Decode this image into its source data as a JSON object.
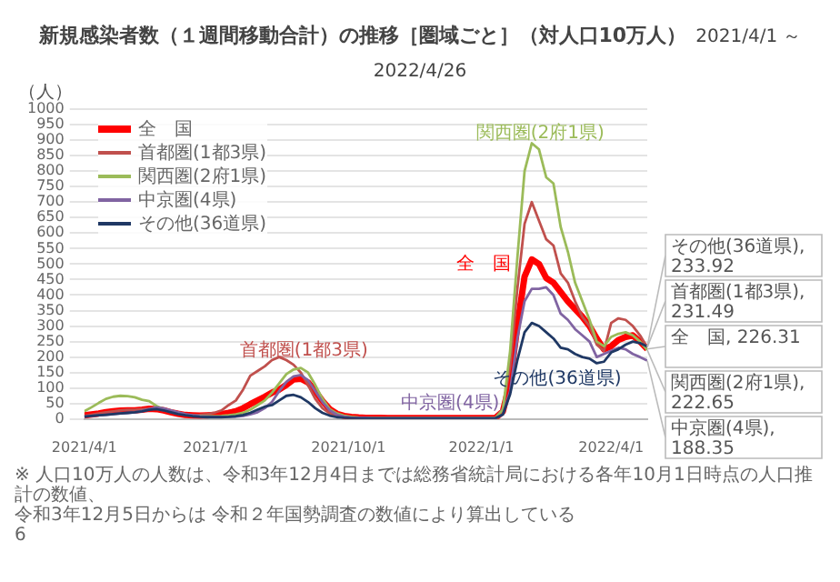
{
  "chart_data": {
    "type": "line",
    "title": "新規感染者数（１週間移動合計）の推移［圏域ごと］（対人口10万人）",
    "subtitle": "2021/4/1 ～ 2022/4/26",
    "ylabel": "（人）",
    "x": [
      "2021-04-01",
      "2021-04-06",
      "2021-04-11",
      "2021-04-16",
      "2021-04-21",
      "2021-04-26",
      "2021-05-01",
      "2021-05-06",
      "2021-05-11",
      "2021-05-16",
      "2021-05-21",
      "2021-05-26",
      "2021-05-31",
      "2021-06-05",
      "2021-06-10",
      "2021-06-15",
      "2021-06-20",
      "2021-06-25",
      "2021-06-30",
      "2021-07-05",
      "2021-07-10",
      "2021-07-15",
      "2021-07-20",
      "2021-07-25",
      "2021-07-30",
      "2021-08-04",
      "2021-08-09",
      "2021-08-14",
      "2021-08-19",
      "2021-08-24",
      "2021-08-29",
      "2021-09-03",
      "2021-09-08",
      "2021-09-13",
      "2021-09-18",
      "2021-09-23",
      "2021-09-28",
      "2021-10-03",
      "2021-10-08",
      "2021-10-13",
      "2021-10-18",
      "2021-10-23",
      "2021-10-28",
      "2021-11-02",
      "2021-11-07",
      "2021-11-12",
      "2021-11-17",
      "2021-11-22",
      "2021-11-27",
      "2021-12-02",
      "2021-12-07",
      "2021-12-12",
      "2021-12-17",
      "2021-12-22",
      "2021-12-27",
      "2022-01-01",
      "2022-01-06",
      "2022-01-11",
      "2022-01-16",
      "2022-01-21",
      "2022-01-26",
      "2022-01-31",
      "2022-02-05",
      "2022-02-10",
      "2022-02-15",
      "2022-02-20",
      "2022-02-25",
      "2022-03-02",
      "2022-03-07",
      "2022-03-12",
      "2022-03-17",
      "2022-03-22",
      "2022-03-27",
      "2022-04-01",
      "2022-04-06",
      "2022-04-11",
      "2022-04-16",
      "2022-04-21",
      "2022-04-26"
    ],
    "series": [
      {
        "name": "全　国",
        "color": "#ff0000",
        "values": [
          12,
          15,
          18,
          22,
          25,
          27,
          28,
          28,
          30,
          33,
          32,
          28,
          22,
          17,
          13,
          12,
          11,
          12,
          13,
          16,
          20,
          25,
          35,
          48,
          60,
          72,
          85,
          95,
          110,
          128,
          130,
          118,
          90,
          58,
          32,
          17,
          10,
          7,
          5,
          4,
          4,
          4,
          3,
          3,
          3,
          3,
          3,
          3,
          3,
          3,
          3,
          3,
          3,
          3,
          3,
          3,
          3,
          4,
          25,
          120,
          300,
          460,
          515,
          500,
          455,
          440,
          410,
          380,
          355,
          330,
          300,
          260,
          225,
          235,
          255,
          265,
          270,
          250,
          226.31
        ],
        "value_labels": [
          null,
          null,
          null,
          null,
          null,
          null,
          null,
          null,
          null,
          null,
          null,
          null,
          null,
          null,
          null,
          null,
          null,
          null,
          null,
          null,
          null,
          null,
          null,
          null,
          null,
          null,
          null,
          null,
          null,
          null,
          null,
          null,
          null,
          null,
          null,
          null,
          null,
          null,
          null,
          null,
          null,
          null,
          null,
          null,
          null,
          null,
          null,
          null,
          null,
          null,
          null,
          null,
          null,
          null,
          null,
          null,
          null,
          null,
          null,
          null,
          null,
          null,
          null,
          null,
          null,
          null,
          null,
          null,
          null,
          null,
          null,
          null,
          null,
          null,
          null,
          null,
          null,
          null,
          "全　国, 226.31"
        ]
      },
      {
        "name": "首都圏(1都3県)",
        "color": "#c0504d",
        "values": [
          10,
          14,
          18,
          22,
          25,
          28,
          30,
          30,
          32,
          33,
          33,
          28,
          22,
          17,
          14,
          13,
          14,
          16,
          20,
          28,
          45,
          60,
          95,
          140,
          155,
          170,
          190,
          200,
          190,
          175,
          150,
          110,
          65,
          35,
          18,
          10,
          7,
          5,
          5,
          4,
          4,
          4,
          4,
          4,
          4,
          4,
          4,
          4,
          4,
          4,
          4,
          4,
          4,
          4,
          4,
          4,
          4,
          5,
          35,
          170,
          420,
          630,
          700,
          640,
          580,
          560,
          470,
          440,
          380,
          330,
          300,
          240,
          220,
          310,
          325,
          320,
          300,
          270,
          231.49
        ],
        "value_labels": [
          null,
          null,
          null,
          null,
          null,
          null,
          null,
          null,
          null,
          null,
          null,
          null,
          null,
          null,
          null,
          null,
          null,
          null,
          null,
          null,
          null,
          null,
          null,
          null,
          null,
          null,
          null,
          null,
          null,
          null,
          null,
          null,
          null,
          null,
          null,
          null,
          null,
          null,
          null,
          null,
          null,
          null,
          null,
          null,
          null,
          null,
          null,
          null,
          null,
          null,
          null,
          null,
          null,
          null,
          null,
          null,
          null,
          null,
          null,
          null,
          null,
          null,
          null,
          null,
          null,
          null,
          null,
          null,
          null,
          null,
          null,
          null,
          null,
          null,
          null,
          null,
          null,
          null,
          "首都圏(1都3県), 231.49"
        ]
      },
      {
        "name": "関西圏(2府1県)",
        "color": "#9bbb59",
        "values": [
          25,
          38,
          52,
          65,
          72,
          75,
          74,
          70,
          62,
          58,
          42,
          32,
          25,
          18,
          14,
          11,
          10,
          9,
          9,
          10,
          12,
          15,
          20,
          30,
          45,
          60,
          85,
          115,
          145,
          160,
          165,
          150,
          110,
          65,
          32,
          18,
          11,
          7,
          5,
          4,
          3,
          3,
          3,
          3,
          3,
          3,
          3,
          3,
          3,
          3,
          3,
          3,
          3,
          3,
          3,
          3,
          3,
          4,
          30,
          220,
          520,
          800,
          890,
          870,
          780,
          760,
          620,
          540,
          440,
          380,
          320,
          250,
          235,
          265,
          275,
          280,
          270,
          250,
          222.65
        ],
        "value_labels": [
          null,
          null,
          null,
          null,
          null,
          null,
          null,
          null,
          null,
          null,
          null,
          null,
          null,
          null,
          null,
          null,
          null,
          null,
          null,
          null,
          null,
          null,
          null,
          null,
          null,
          null,
          null,
          null,
          null,
          null,
          null,
          null,
          null,
          null,
          null,
          null,
          null,
          null,
          null,
          null,
          null,
          null,
          null,
          null,
          null,
          null,
          null,
          null,
          null,
          null,
          null,
          null,
          null,
          null,
          null,
          null,
          null,
          null,
          null,
          null,
          null,
          null,
          null,
          null,
          null,
          null,
          null,
          null,
          null,
          null,
          null,
          null,
          null,
          null,
          null,
          null,
          null,
          null,
          "関西圏(2府1県), 222.65"
        ]
      },
      {
        "name": "中京圏(4県)",
        "color": "#8064a2",
        "values": [
          8,
          10,
          12,
          14,
          16,
          18,
          20,
          22,
          26,
          32,
          38,
          34,
          28,
          22,
          16,
          12,
          9,
          8,
          7,
          7,
          7,
          8,
          10,
          15,
          22,
          35,
          55,
          90,
          120,
          138,
          142,
          125,
          90,
          55,
          28,
          14,
          8,
          5,
          4,
          4,
          3,
          3,
          3,
          3,
          3,
          3,
          3,
          3,
          3,
          3,
          3,
          3,
          3,
          3,
          3,
          3,
          3,
          3,
          15,
          90,
          260,
          380,
          420,
          420,
          425,
          400,
          340,
          320,
          290,
          270,
          250,
          200,
          210,
          220,
          230,
          225,
          210,
          200,
          188.35
        ],
        "value_labels": [
          null,
          null,
          null,
          null,
          null,
          null,
          null,
          null,
          null,
          null,
          null,
          null,
          null,
          null,
          null,
          null,
          null,
          null,
          null,
          null,
          null,
          null,
          null,
          null,
          null,
          null,
          null,
          null,
          null,
          null,
          null,
          null,
          null,
          null,
          null,
          null,
          null,
          null,
          null,
          null,
          null,
          null,
          null,
          null,
          null,
          null,
          null,
          null,
          null,
          null,
          null,
          null,
          null,
          null,
          null,
          null,
          null,
          null,
          null,
          null,
          null,
          null,
          null,
          null,
          null,
          null,
          null,
          null,
          null,
          null,
          null,
          null,
          null,
          null,
          null,
          null,
          null,
          null,
          "中京圏(4県), 188.35"
        ]
      },
      {
        "name": "その他(36道県)",
        "color": "#1f3864",
        "values": [
          8,
          10,
          12,
          14,
          16,
          18,
          20,
          22,
          25,
          30,
          32,
          28,
          22,
          16,
          12,
          9,
          7,
          6,
          6,
          6,
          7,
          9,
          13,
          20,
          30,
          40,
          45,
          60,
          75,
          78,
          70,
          55,
          35,
          20,
          11,
          6,
          4,
          3,
          2,
          2,
          2,
          2,
          2,
          2,
          2,
          2,
          2,
          2,
          2,
          2,
          2,
          2,
          2,
          2,
          2,
          2,
          2,
          3,
          15,
          80,
          190,
          280,
          310,
          300,
          280,
          260,
          230,
          225,
          210,
          200,
          195,
          180,
          185,
          215,
          225,
          240,
          250,
          245,
          233.92
        ],
        "value_labels": [
          null,
          null,
          null,
          null,
          null,
          null,
          null,
          null,
          null,
          null,
          null,
          null,
          null,
          null,
          null,
          null,
          null,
          null,
          null,
          null,
          null,
          null,
          null,
          null,
          null,
          null,
          null,
          null,
          null,
          null,
          null,
          null,
          null,
          null,
          null,
          null,
          null,
          null,
          null,
          null,
          null,
          null,
          null,
          null,
          null,
          null,
          null,
          null,
          null,
          null,
          null,
          null,
          null,
          null,
          null,
          null,
          null,
          null,
          null,
          null,
          null,
          null,
          null,
          null,
          null,
          null,
          null,
          null,
          null,
          null,
          null,
          null,
          null,
          null,
          null,
          null,
          null,
          null,
          "その他(36道県), 233.92"
        ]
      }
    ],
    "xlim": [
      "2021-04-01",
      "2022-04-26"
    ],
    "xticks": [
      {
        "value": "2021-04-01",
        "label": "2021/4/1"
      },
      {
        "value": "2021-07-01",
        "label": "2021/7/1"
      },
      {
        "value": "2021-10-01",
        "label": "2021/10/1"
      },
      {
        "value": "2022-01-01",
        "label": "2022/1/1"
      },
      {
        "value": "2022-04-01",
        "label": "2022/4/1"
      }
    ],
    "ylim": [
      0,
      1000
    ],
    "yticks": [
      0,
      50,
      100,
      150,
      200,
      250,
      300,
      350,
      400,
      450,
      500,
      550,
      600,
      650,
      700,
      750,
      800,
      850,
      900,
      950,
      1000
    ],
    "grid": "y",
    "legend": "top left",
    "marker": "none",
    "line_style": "solid",
    "annotations": [
      "※ 人口10万人の人数は、令和3年12月4日までは総務省統計局における各年10月1日時点の人口推計の数値、",
      "令和3年12月5日からは 令和２年国勢調査の数値により算出している",
      "6"
    ]
  }
}
